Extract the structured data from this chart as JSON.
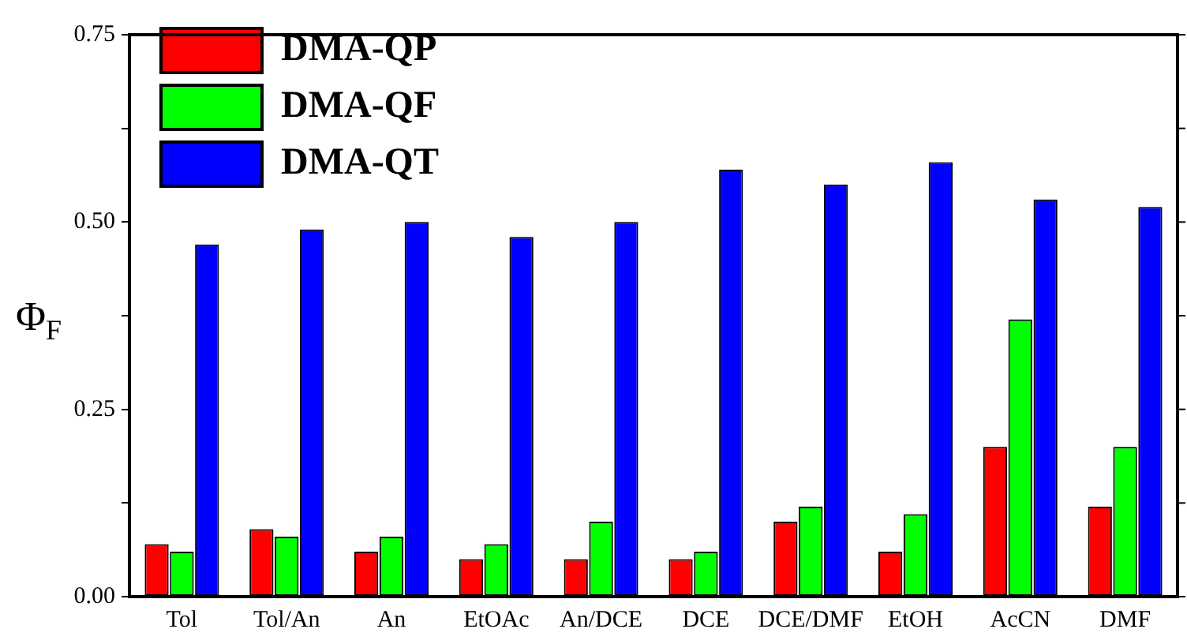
{
  "chart_data": {
    "type": "bar",
    "ylabel": "Φ$_{F}$",
    "categories": [
      "Tol",
      "Tol/An",
      "An",
      "EtOAc",
      "An/DCE",
      "DCE",
      "DCE/DMF",
      "EtOH",
      "AcCN",
      "DMF"
    ],
    "series": [
      {
        "name": "DMA-QP",
        "color": "#ff0000",
        "values": [
          0.07,
          0.09,
          0.06,
          0.05,
          0.05,
          0.05,
          0.1,
          0.06,
          0.2,
          0.12
        ]
      },
      {
        "name": "DMA-QF",
        "color": "#00ff00",
        "values": [
          0.06,
          0.08,
          0.08,
          0.07,
          0.1,
          0.06,
          0.12,
          0.11,
          0.37,
          0.2
        ]
      },
      {
        "name": "DMA-QT",
        "color": "#0000ff",
        "values": [
          0.47,
          0.49,
          0.5,
          0.48,
          0.5,
          0.57,
          0.55,
          0.58,
          0.53,
          0.52
        ]
      }
    ],
    "ylim": [
      0,
      0.75
    ],
    "yticks": [
      "0.00",
      {
        "value": 0.125,
        "label": null
      },
      {
        "value": 0.25,
        "label": "0.25"
      },
      {
        "value": 0.375,
        "label": null
      },
      {
        "value": 0.5,
        "label": "0.50"
      },
      {
        "value": 0.625,
        "label": null
      },
      {
        "value": 0.75,
        "label": "0.75"
      }
    ],
    "grid": false,
    "legend": "top left"
  }
}
